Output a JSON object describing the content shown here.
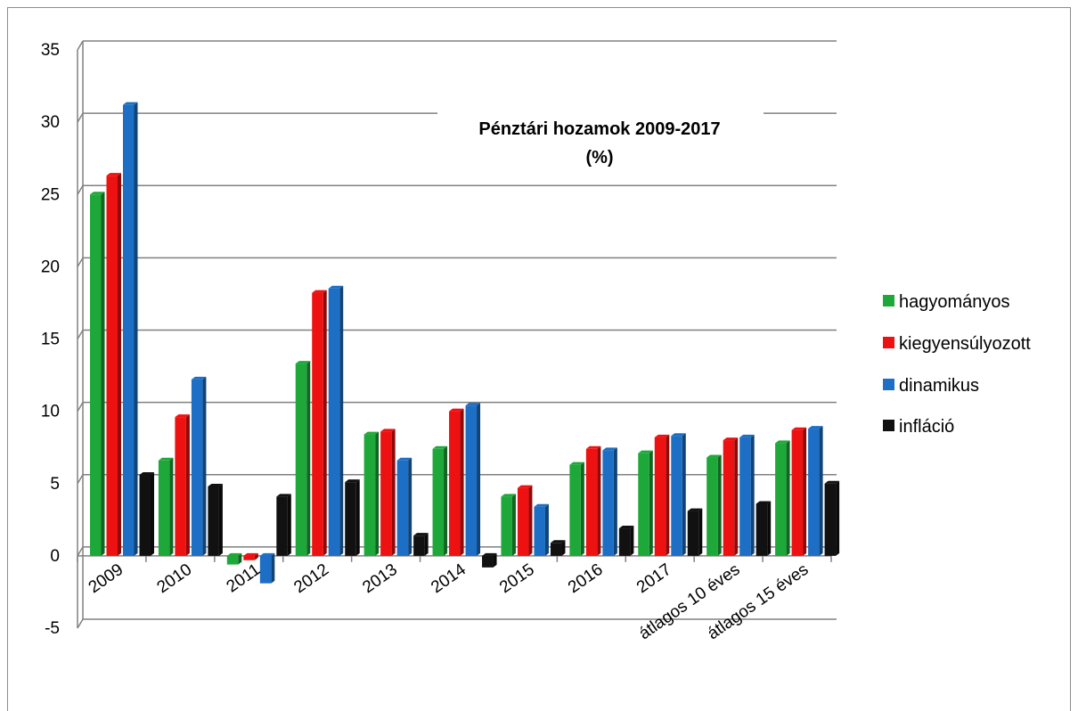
{
  "chart_data": {
    "type": "bar",
    "title_lines": [
      "Pénztári hozamok 2009-2017",
      "(%)"
    ],
    "categories": [
      "2009",
      "2010",
      "2011",
      "2012",
      "2013",
      "2014",
      "2015",
      "2016",
      "2017",
      "átlagos 10 éves",
      "átlagos 15 éves"
    ],
    "series": [
      {
        "name": "hagyományos",
        "color": "#1fa83a",
        "values": [
          25.0,
          6.6,
          -0.6,
          13.3,
          8.4,
          7.4,
          4.1,
          6.3,
          7.1,
          6.8,
          7.8
        ]
      },
      {
        "name": "kiegyensúlyozott",
        "color": "#ee1111",
        "values": [
          26.3,
          9.6,
          -0.3,
          18.2,
          8.6,
          10.0,
          4.7,
          7.4,
          8.2,
          8.0,
          8.7
        ]
      },
      {
        "name": "dinamikus",
        "color": "#1c6fc4",
        "values": [
          31.2,
          12.2,
          -1.9,
          18.5,
          6.6,
          10.4,
          3.4,
          7.3,
          8.3,
          8.2,
          8.8
        ]
      },
      {
        "name": "infláció",
        "color": "#111111",
        "values": [
          5.6,
          4.8,
          4.1,
          5.1,
          1.4,
          -0.8,
          0.9,
          1.9,
          3.1,
          3.6,
          5.0
        ]
      }
    ],
    "ylim": [
      -5,
      35
    ],
    "yticks": [
      "35",
      "30",
      "25",
      "20",
      "15",
      "10",
      "5",
      "0",
      "-5"
    ],
    "grid": true,
    "legend_position": "right"
  }
}
